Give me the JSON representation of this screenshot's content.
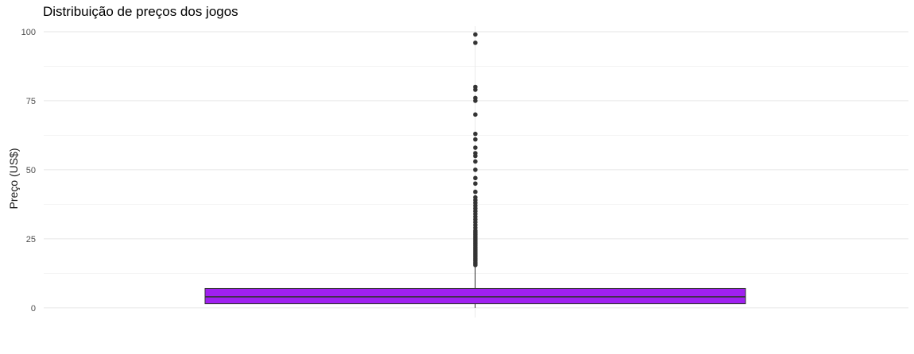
{
  "chart_data": {
    "type": "boxplot",
    "title": "Distribuição de preços dos jogos",
    "xlabel": "",
    "ylabel": "Preço (US$)",
    "ylim": [
      -3.5,
      102
    ],
    "y_ticks": [
      0,
      25,
      50,
      75,
      100
    ],
    "y_tick_labels": [
      "0",
      "25",
      "50",
      "75",
      "100"
    ],
    "grid": true,
    "box": {
      "min": 0,
      "q1": 1.5,
      "median": 4,
      "q3": 7,
      "whisker_low": 0,
      "whisker_high": 15,
      "fill": "#a020f0",
      "outliers": [
        99,
        96,
        80,
        79,
        76,
        75,
        70,
        63,
        61,
        58,
        56,
        55,
        53,
        50,
        47,
        45,
        42,
        40,
        39,
        38,
        37,
        36,
        35,
        34,
        33,
        32,
        31,
        30,
        29,
        28,
        27.5,
        27,
        26.5,
        26,
        25.5,
        25,
        24.5,
        24,
        23.5,
        23,
        22.5,
        22,
        21.5,
        21,
        20.5,
        20,
        19.5,
        19,
        18.5,
        18,
        17.5,
        17,
        16.5,
        16,
        15.5
      ]
    }
  }
}
